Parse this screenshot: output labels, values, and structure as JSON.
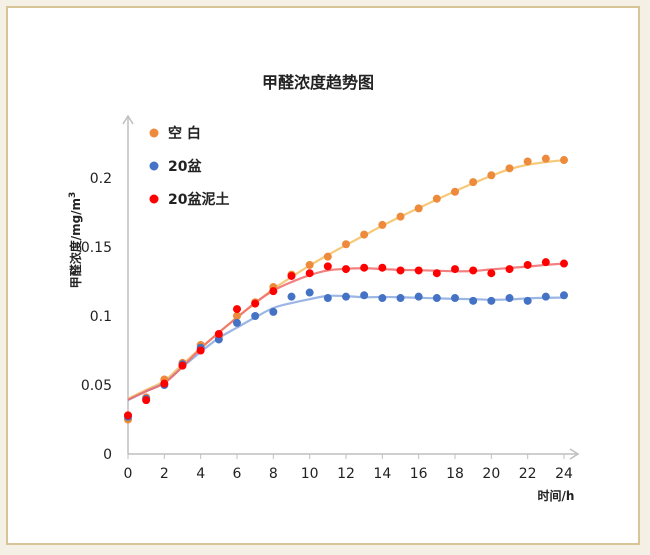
{
  "chart_data": {
    "type": "scatter",
    "title": "甲醛浓度趋势图",
    "xlabel": "时间/h",
    "ylabel": "甲醛浓度/mg/m",
    "ylabel_sup": "3",
    "xlim": [
      0,
      24
    ],
    "ylim": [
      0,
      0.2
    ],
    "xticks": [
      0,
      2,
      4,
      6,
      8,
      10,
      12,
      14,
      16,
      18,
      20,
      22,
      24
    ],
    "yticks": [
      0,
      0.05,
      0.1,
      0.15,
      0.2
    ],
    "ytick_labels": [
      "0",
      "0.05",
      "0.1",
      "0.15",
      "0.2"
    ],
    "grid": false,
    "legend_position": "top-left",
    "series": [
      {
        "name": "空 白",
        "color": "#ed8a3b",
        "trend_color": "#f5c060",
        "x": [
          0,
          1,
          2,
          3,
          4,
          5,
          6,
          7,
          8,
          9,
          10,
          11,
          12,
          13,
          14,
          15,
          16,
          17,
          18,
          19,
          20,
          21,
          22,
          23,
          24
        ],
        "y": [
          0.025,
          0.041,
          0.054,
          0.066,
          0.079,
          0.085,
          0.1,
          0.11,
          0.121,
          0.13,
          0.137,
          0.143,
          0.152,
          0.159,
          0.166,
          0.172,
          0.178,
          0.185,
          0.19,
          0.197,
          0.202,
          0.207,
          0.212,
          0.214,
          0.213
        ]
      },
      {
        "name": "20盆",
        "color": "#4472c4",
        "trend_color": "#8aa8e0",
        "x": [
          0,
          1,
          2,
          3,
          4,
          5,
          6,
          7,
          8,
          9,
          10,
          11,
          12,
          13,
          14,
          15,
          16,
          17,
          18,
          19,
          20,
          21,
          22,
          23,
          24
        ],
        "y": [
          0.027,
          0.04,
          0.05,
          0.065,
          0.077,
          0.083,
          0.095,
          0.1,
          0.103,
          0.114,
          0.117,
          0.113,
          0.114,
          0.115,
          0.113,
          0.113,
          0.114,
          0.113,
          0.113,
          0.111,
          0.111,
          0.113,
          0.111,
          0.114,
          0.115
        ]
      },
      {
        "name": "20盆泥土",
        "color": "#ff0000",
        "trend_color": "#f06a6a",
        "x": [
          0,
          1,
          2,
          3,
          4,
          5,
          6,
          7,
          8,
          9,
          10,
          11,
          12,
          13,
          14,
          15,
          16,
          17,
          18,
          19,
          20,
          21,
          22,
          23,
          24
        ],
        "y": [
          0.028,
          0.039,
          0.051,
          0.064,
          0.075,
          0.087,
          0.105,
          0.109,
          0.118,
          0.129,
          0.131,
          0.136,
          0.134,
          0.135,
          0.135,
          0.133,
          0.133,
          0.131,
          0.134,
          0.133,
          0.131,
          0.134,
          0.137,
          0.139,
          0.138
        ]
      }
    ]
  }
}
